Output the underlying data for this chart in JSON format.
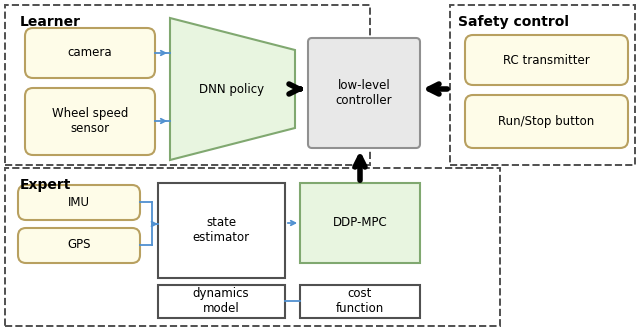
{
  "fig_width": 6.4,
  "fig_height": 3.33,
  "dpi": 100,
  "bg_color": "#ffffff",
  "box_yellow_fill": "#fefce8",
  "box_yellow_edge": "#b8a060",
  "box_green_fill": "#e8f5e0",
  "box_green_edge": "#80a870",
  "box_gray_fill": "#e8e8e8",
  "box_gray_edge": "#909090",
  "box_white_fill": "#ffffff",
  "box_white_edge": "#505050",
  "dashed_border_color": "#505050",
  "arrow_blue": "#5090d0",
  "arrow_black": "#000000",
  "label_fontsize": 8.5,
  "section_fontsize": 10,
  "learner_label": "Learner",
  "expert_label": "Expert",
  "safety_label": "Safety control"
}
